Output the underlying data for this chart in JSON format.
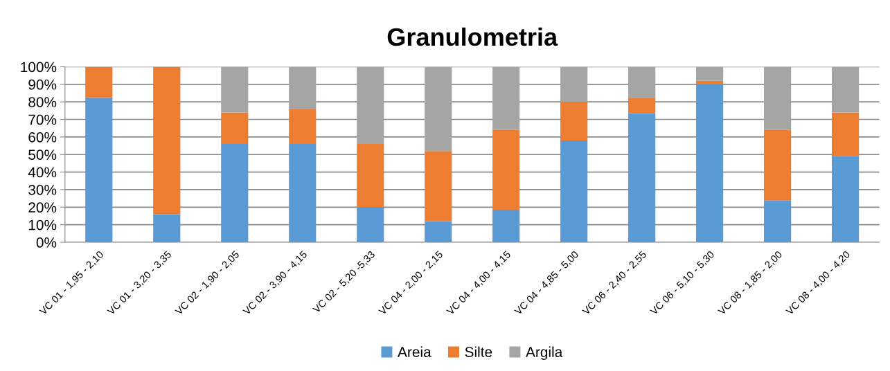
{
  "chart_data": {
    "type": "bar",
    "title": "Granulometria",
    "stacked": true,
    "categories": [
      "VC 01 - 1,95 - 2,10",
      "VC 01 - 3,20 - 3,35",
      "VC 02 - 1,90 - 2,05",
      "VC 02 - 3,90 - 4,15",
      "VC 02 - 5,20 -5,33",
      "VC 04 - 2,00 - 2,15",
      "VC 04 - 4,00 - 4,15",
      "VC 04 - 4,85 - 5,00",
      "VC 06 - 2,40 - 2,55",
      "VC 06 - 5,10 - 5,30",
      "VC 08 - 1,85 - 2,00",
      "VC 08 - 4,00 - 4,20"
    ],
    "series": [
      {
        "name": "Areia",
        "color": "#5b9bd5",
        "values": [
          82.5,
          16,
          56,
          56,
          20,
          12,
          18.5,
          58,
          73.5,
          90,
          24,
          49
        ]
      },
      {
        "name": "Silte",
        "color": "#ed7d31",
        "values": [
          17.5,
          84,
          18,
          20,
          36,
          40,
          45.5,
          22,
          8.5,
          2,
          40,
          25
        ]
      },
      {
        "name": "Argila",
        "color": "#a5a5a5",
        "values": [
          0,
          0,
          26,
          24,
          44,
          48,
          36,
          20,
          18,
          8,
          36,
          26
        ]
      }
    ],
    "ylim": [
      0,
      100
    ],
    "yticks": [
      {
        "value": 0,
        "label": "0%"
      },
      {
        "value": 10,
        "label": "10%"
      },
      {
        "value": 20,
        "label": "20%"
      },
      {
        "value": 30,
        "label": "30%"
      },
      {
        "value": 40,
        "label": "40%"
      },
      {
        "value": 50,
        "label": "50%"
      },
      {
        "value": 60,
        "label": "60%"
      },
      {
        "value": 70,
        "label": "70%"
      },
      {
        "value": 80,
        "label": "80%"
      },
      {
        "value": 90,
        "label": "90%"
      },
      {
        "value": 100,
        "label": "100%"
      }
    ],
    "grid": "y",
    "legend": "bottom"
  }
}
